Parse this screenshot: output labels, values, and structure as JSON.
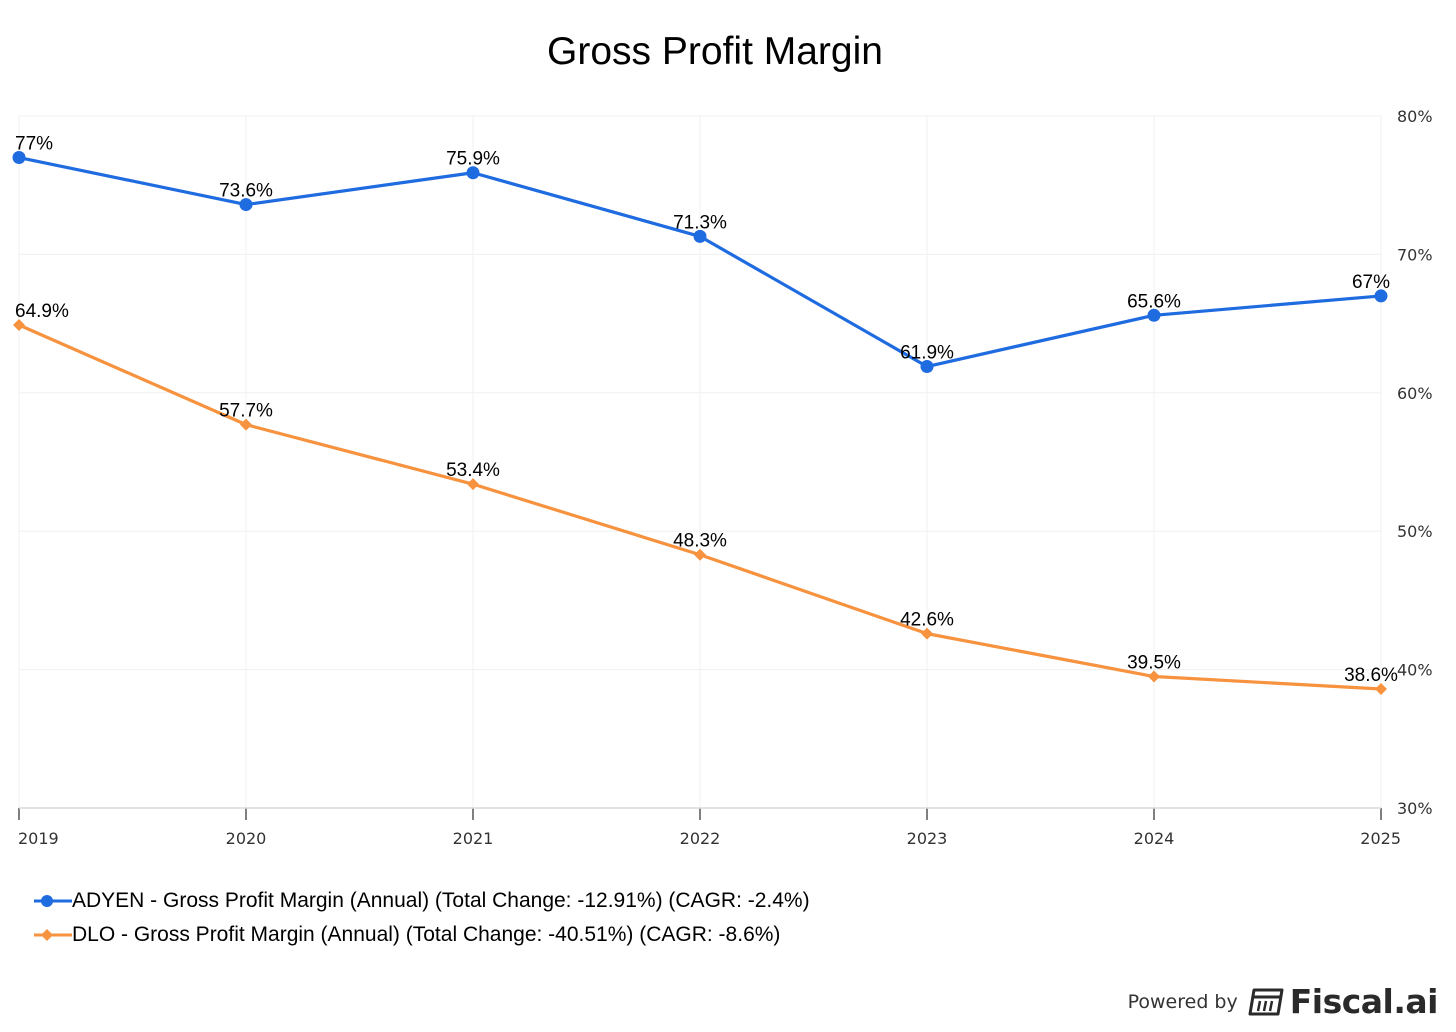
{
  "chart_data": {
    "type": "line",
    "title": "Gross Profit Margin",
    "categories": [
      "2019",
      "2020",
      "2021",
      "2022",
      "2023",
      "2024",
      "2025"
    ],
    "series": [
      {
        "name": "ADYEN - Gross Profit Margin (Annual) (Total Change: -12.91%) (CAGR: -2.4%)",
        "values": [
          77,
          73.6,
          75.9,
          71.3,
          61.9,
          65.6,
          67
        ],
        "labels": [
          "77%",
          "73.6%",
          "75.9%",
          "71.3%",
          "61.9%",
          "65.6%",
          "67%"
        ],
        "color": "#1f6be0",
        "marker": "circle"
      },
      {
        "name": "DLO - Gross Profit Margin (Annual) (Total Change: -40.51%) (CAGR: -8.6%)",
        "values": [
          64.9,
          57.7,
          53.4,
          48.3,
          42.6,
          39.5,
          38.6
        ],
        "labels": [
          "64.9%",
          "57.7%",
          "53.4%",
          "48.3%",
          "42.6%",
          "39.5%",
          "38.6%"
        ],
        "color": "#f7923f",
        "marker": "diamond"
      }
    ],
    "yaxis": {
      "position": "right",
      "ticks": [
        80,
        70,
        60,
        50,
        40,
        30
      ],
      "tick_labels": [
        "80%",
        "70%",
        "60%",
        "50%",
        "40%",
        "30%"
      ],
      "ylim": [
        30,
        80
      ]
    },
    "xlabel": "",
    "ylabel": "",
    "grid": true,
    "legend_position": "bottom-left"
  },
  "footer": {
    "powered_by": "Powered by",
    "brand": "Fiscal.ai",
    "brand_icon": "fiscal-calculator-icon"
  }
}
